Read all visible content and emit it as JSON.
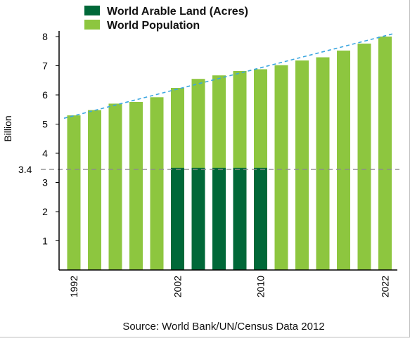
{
  "chart_data": {
    "type": "bar",
    "ylabel": "Billion",
    "xlabel": "",
    "source": "Source: World Bank/UN/Census Data 2012",
    "ylim": [
      0,
      8
    ],
    "yticks": [
      "1",
      "2",
      "3",
      "4",
      "5",
      "6",
      "7",
      "8"
    ],
    "reference_line": {
      "value": 3.4,
      "label": "3.4"
    },
    "x_tick_labels": [
      {
        "label": "1992",
        "index": 0
      },
      {
        "label": "2002",
        "index": 5
      },
      {
        "label": "2010",
        "index": 9
      },
      {
        "label": "2022",
        "index": 15
      }
    ],
    "series": [
      {
        "name": "World Arable Land (Acres)",
        "color": "#006838",
        "values": [
          null,
          null,
          null,
          null,
          null,
          3.5,
          3.5,
          3.5,
          3.5,
          3.5,
          null,
          null,
          null,
          null,
          null,
          null
        ]
      },
      {
        "name": "World Population",
        "color": "#8dc63f",
        "values": [
          5.3,
          5.48,
          5.7,
          5.76,
          5.92,
          6.24,
          6.55,
          6.67,
          6.82,
          6.88,
          7.02,
          7.18,
          7.29,
          7.52,
          7.76,
          8.0
        ]
      }
    ],
    "trendline": {
      "from": 5.2,
      "to": 8.1,
      "color": "#3ba6e0"
    },
    "grid": false,
    "legend_position": "top-left"
  }
}
